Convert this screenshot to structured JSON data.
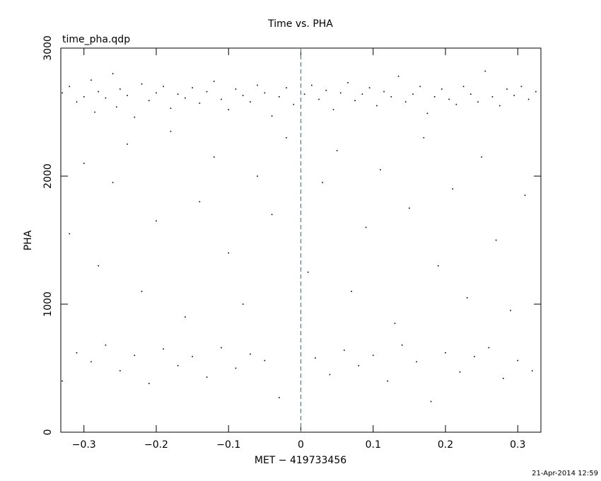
{
  "chart_data": {
    "type": "scatter",
    "title": "Time vs. PHA",
    "subtitle": "time_pha.qdp",
    "xlabel": "MET − 419733456",
    "ylabel": "PHA",
    "annotation": "21-Apr-2014 12:59",
    "color": "#000000",
    "vline": {
      "x": 0,
      "color": "#1a8fa0"
    },
    "xlim": [
      -0.332,
      0.332
    ],
    "ylim": [
      0,
      3000
    ],
    "xticks": [
      {
        "value": -0.3,
        "label": "−0.3"
      },
      {
        "value": -0.2,
        "label": "−0.2"
      },
      {
        "value": -0.1,
        "label": "−0.1"
      },
      0,
      0.1,
      0.2,
      0.3
    ],
    "yticks": [
      0,
      1000,
      2000,
      3000
    ],
    "x": [
      -0.33,
      -0.32,
      -0.31,
      -0.3,
      -0.29,
      -0.285,
      -0.28,
      -0.27,
      -0.26,
      -0.255,
      -0.25,
      -0.24,
      -0.23,
      -0.22,
      -0.21,
      -0.2,
      -0.19,
      -0.18,
      -0.17,
      -0.16,
      -0.15,
      -0.14,
      -0.13,
      -0.12,
      -0.11,
      -0.1,
      -0.09,
      -0.08,
      -0.07,
      -0.06,
      -0.05,
      -0.04,
      -0.03,
      -0.02,
      -0.01,
      0.005,
      0.015,
      0.025,
      0.035,
      0.045,
      0.055,
      0.065,
      0.075,
      0.085,
      0.095,
      0.105,
      0.115,
      0.125,
      0.135,
      0.145,
      0.155,
      0.165,
      0.175,
      0.185,
      0.195,
      0.205,
      0.215,
      0.225,
      0.235,
      0.245,
      0.255,
      0.265,
      0.275,
      0.285,
      0.295,
      0.305,
      0.315,
      0.325,
      -0.32,
      -0.3,
      -0.28,
      -0.26,
      -0.24,
      -0.22,
      -0.2,
      -0.18,
      -0.16,
      -0.14,
      -0.12,
      -0.1,
      -0.08,
      -0.06,
      -0.04,
      -0.02,
      0.01,
      0.03,
      0.05,
      0.07,
      0.09,
      0.11,
      0.13,
      0.15,
      0.17,
      0.19,
      0.21,
      0.23,
      0.25,
      0.27,
      0.29,
      0.31,
      -0.33,
      -0.31,
      -0.29,
      -0.27,
      -0.25,
      -0.23,
      -0.21,
      -0.19,
      -0.17,
      -0.15,
      -0.13,
      -0.11,
      -0.09,
      -0.07,
      -0.05,
      -0.03,
      0.02,
      0.04,
      0.06,
      0.08,
      0.1,
      0.12,
      0.14,
      0.16,
      0.18,
      0.2,
      0.22,
      0.24,
      0.26,
      0.28,
      0.3,
      0.32
    ],
    "values": [
      2650,
      2700,
      2580,
      2620,
      2750,
      2500,
      2660,
      2610,
      2800,
      2540,
      2680,
      2630,
      2460,
      2720,
      2590,
      2650,
      2700,
      2530,
      2640,
      2610,
      2690,
      2570,
      2660,
      2740,
      2600,
      2520,
      2680,
      2630,
      2580,
      2710,
      2650,
      2470,
      2620,
      2690,
      2560,
      2640,
      2710,
      2600,
      2670,
      2520,
      2650,
      2730,
      2590,
      2640,
      2690,
      2550,
      2660,
      2620,
      2780,
      2580,
      2640,
      2700,
      2490,
      2620,
      2680,
      2600,
      2560,
      2700,
      2640,
      2580,
      2820,
      2620,
      2550,
      2680,
      2630,
      2700,
      2600,
      2660,
      1550,
      2100,
      1300,
      1950,
      2250,
      1100,
      1650,
      2350,
      900,
      1800,
      2150,
      1400,
      1000,
      2000,
      1700,
      2300,
      1250,
      1950,
      2200,
      1100,
      1600,
      2050,
      850,
      1750,
      2300,
      1300,
      1900,
      1050,
      2150,
      1500,
      950,
      1850,
      400,
      620,
      550,
      680,
      480,
      600,
      380,
      650,
      520,
      590,
      430,
      660,
      500,
      610,
      560,
      270,
      580,
      450,
      640,
      520,
      600,
      400,
      680,
      550,
      240,
      620,
      470,
      590,
      660,
      420,
      560,
      480
    ]
  }
}
